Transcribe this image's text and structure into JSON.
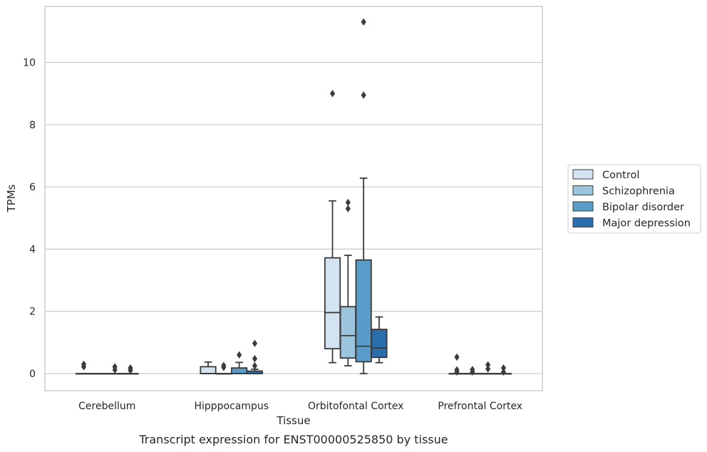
{
  "chart_data": {
    "type": "box",
    "title": "Transcript expression for ENST00000525850 by tissue",
    "xlabel": "Tissue",
    "ylabel": "TPMs",
    "ylim": [
      -0.55,
      11.8
    ],
    "yticks": [
      0,
      2,
      4,
      6,
      8,
      10
    ],
    "grid": "horizontal",
    "legend_position": "right",
    "categories": [
      "Cerebellum",
      "Hipppocampus",
      "Orbitofontal Cortex",
      "Prefrontal Cortex"
    ],
    "series": [
      {
        "name": "Control",
        "color": "#d3e3f2",
        "boxes": [
          {
            "whislo": 0,
            "q1": 0,
            "med": 0,
            "q3": 0,
            "whishi": 0,
            "fliers": [
              0.22,
              0.3
            ]
          },
          {
            "whislo": 0,
            "q1": 0,
            "med": 0,
            "q3": 0.22,
            "whishi": 0.37,
            "fliers": []
          },
          {
            "whislo": 0.35,
            "q1": 0.8,
            "med": 1.96,
            "q3": 3.72,
            "whishi": 5.55,
            "fliers": [
              9.0
            ]
          },
          {
            "whislo": 0,
            "q1": 0,
            "med": 0,
            "q3": 0,
            "whishi": 0,
            "fliers": [
              0.05,
              0.12,
              0.53
            ]
          }
        ]
      },
      {
        "name": "Schizophrenia",
        "color": "#9bc5df",
        "boxes": [
          {
            "whislo": 0,
            "q1": 0,
            "med": 0,
            "q3": 0,
            "whishi": 0,
            "fliers": []
          },
          {
            "whislo": 0,
            "q1": 0,
            "med": 0,
            "q3": 0,
            "whishi": 0,
            "fliers": [
              0.2,
              0.26
            ]
          },
          {
            "whislo": 0.25,
            "q1": 0.5,
            "med": 1.22,
            "q3": 2.15,
            "whishi": 3.8,
            "fliers": [
              5.3,
              5.5
            ]
          },
          {
            "whislo": 0,
            "q1": 0,
            "med": 0,
            "q3": 0,
            "whishi": 0,
            "fliers": [
              0.05,
              0.13
            ]
          }
        ]
      },
      {
        "name": "Bipolar disorder",
        "color": "#5a9cc9",
        "boxes": [
          {
            "whislo": 0,
            "q1": 0,
            "med": 0,
            "q3": 0,
            "whishi": 0,
            "fliers": [
              0.12,
              0.22
            ]
          },
          {
            "whislo": 0,
            "q1": 0,
            "med": 0,
            "q3": 0.18,
            "whishi": 0.36,
            "fliers": [
              0.6
            ]
          },
          {
            "whislo": 0,
            "q1": 0.38,
            "med": 0.88,
            "q3": 3.65,
            "whishi": 6.28,
            "fliers": [
              8.95,
              11.3
            ]
          },
          {
            "whislo": 0,
            "q1": 0,
            "med": 0,
            "q3": 0,
            "whishi": 0,
            "fliers": [
              0.15,
              0.28
            ]
          }
        ]
      },
      {
        "name": "Major depression",
        "color": "#2b6eae",
        "boxes": [
          {
            "whislo": 0,
            "q1": 0,
            "med": 0,
            "q3": 0,
            "whishi": 0,
            "fliers": [
              0.1,
              0.18
            ]
          },
          {
            "whislo": 0,
            "q1": 0,
            "med": 0,
            "q3": 0.08,
            "whishi": 0.14,
            "fliers": [
              0.25,
              0.48,
              0.97
            ]
          },
          {
            "whislo": 0.35,
            "q1": 0.52,
            "med": 0.82,
            "q3": 1.42,
            "whishi": 1.82,
            "fliers": []
          },
          {
            "whislo": 0,
            "q1": 0,
            "med": 0,
            "q3": 0,
            "whishi": 0,
            "fliers": [
              0.05,
              0.18
            ]
          }
        ]
      }
    ]
  }
}
